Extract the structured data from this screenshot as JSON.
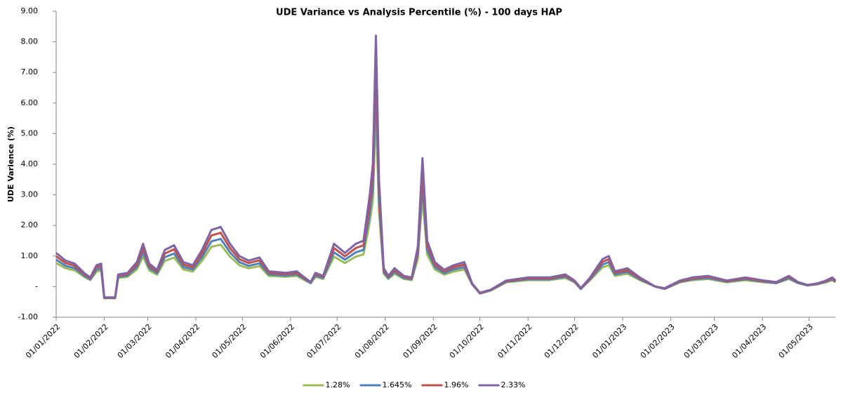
{
  "chart_data": {
    "type": "line",
    "title": "UDE Variance vs Analysis Percentile (%) - 100 days HAP",
    "y_label": "UDE Varience (%)",
    "x": [
      "01/01/2022",
      "07/01/2022",
      "13/01/2022",
      "19/01/2022",
      "23/01/2022",
      "27/01/2022",
      "30/01/2022",
      "01/02/2022",
      "08/02/2022",
      "10/02/2022",
      "16/02/2022",
      "22/02/2022",
      "26/02/2022",
      "02/03/2022",
      "07/03/2022",
      "12/03/2022",
      "18/03/2022",
      "24/03/2022",
      "30/03/2022",
      "05/04/2022",
      "11/04/2022",
      "17/04/2022",
      "23/04/2022",
      "29/04/2022",
      "05/05/2022",
      "12/05/2022",
      "18/05/2022",
      "29/05/2022",
      "05/06/2022",
      "10/06/2022",
      "14/06/2022",
      "17/06/2022",
      "22/06/2022",
      "29/06/2022",
      "06/07/2022",
      "13/07/2022",
      "18/07/2022",
      "22/07/2022",
      "24/07/2022",
      "26/07/2022",
      "28/07/2022",
      "31/07/2022",
      "03/08/2022",
      "07/08/2022",
      "13/08/2022",
      "18/08/2022",
      "22/08/2022",
      "25/08/2022",
      "28/08/2022",
      "02/09/2022",
      "08/09/2022",
      "14/09/2022",
      "21/09/2022",
      "26/09/2022",
      "01/10/2022",
      "08/10/2022",
      "18/10/2022",
      "01/11/2022",
      "15/11/2022",
      "25/11/2022",
      "01/12/2022",
      "05/12/2022",
      "11/12/2022",
      "19/12/2022",
      "23/12/2022",
      "27/12/2022",
      "04/01/2023",
      "12/01/2023",
      "22/01/2023",
      "28/01/2023",
      "07/02/2023",
      "15/02/2023",
      "25/02/2023",
      "09/03/2023",
      "21/03/2023",
      "02/04/2023",
      "10/04/2023",
      "18/04/2023",
      "24/04/2023",
      "30/04/2023",
      "06/05/2023",
      "12/05/2023",
      "16/05/2023",
      "18/05/2023"
    ],
    "series": [
      {
        "name": "1.28%",
        "color": "#9bbb59",
        "values": [
          0.77,
          0.6,
          0.53,
          0.32,
          0.21,
          0.49,
          0.53,
          -0.38,
          -0.38,
          0.28,
          0.32,
          0.56,
          0.98,
          0.53,
          0.39,
          0.84,
          0.95,
          0.56,
          0.49,
          0.84,
          1.3,
          1.37,
          0.98,
          0.7,
          0.6,
          0.67,
          0.35,
          0.32,
          0.35,
          0.21,
          0.11,
          0.32,
          0.25,
          0.98,
          0.77,
          0.98,
          1.05,
          2.1,
          2.8,
          5.74,
          2.45,
          0.42,
          0.25,
          0.42,
          0.25,
          0.21,
          0.91,
          2.94,
          1.05,
          0.56,
          0.39,
          0.49,
          0.56,
          0.07,
          -0.23,
          -0.13,
          0.14,
          0.21,
          0.21,
          0.28,
          0.14,
          -0.08,
          0.21,
          0.63,
          0.7,
          0.35,
          0.42,
          0.21,
          0.0,
          -0.08,
          0.14,
          0.21,
          0.25,
          0.14,
          0.21,
          0.14,
          0.11,
          0.25,
          0.11,
          0.04,
          0.07,
          0.14,
          0.21,
          0.14
        ]
      },
      {
        "name": "1.645%",
        "color": "#4f81bd",
        "values": [
          0.88,
          0.68,
          0.6,
          0.36,
          0.24,
          0.56,
          0.6,
          -0.37,
          -0.37,
          0.32,
          0.36,
          0.64,
          1.12,
          0.6,
          0.44,
          0.96,
          1.08,
          0.64,
          0.56,
          0.96,
          1.48,
          1.56,
          1.12,
          0.8,
          0.68,
          0.76,
          0.4,
          0.36,
          0.4,
          0.24,
          0.12,
          0.36,
          0.28,
          1.12,
          0.88,
          1.12,
          1.2,
          2.4,
          3.2,
          6.56,
          2.8,
          0.48,
          0.28,
          0.48,
          0.28,
          0.24,
          1.04,
          3.36,
          1.2,
          0.64,
          0.44,
          0.56,
          0.64,
          0.08,
          -0.22,
          -0.12,
          0.16,
          0.24,
          0.24,
          0.32,
          0.16,
          -0.07,
          0.24,
          0.72,
          0.8,
          0.4,
          0.48,
          0.24,
          0.0,
          -0.07,
          0.16,
          0.24,
          0.28,
          0.16,
          0.24,
          0.16,
          0.12,
          0.28,
          0.12,
          0.04,
          0.08,
          0.16,
          0.24,
          0.16
        ]
      },
      {
        "name": "1.96%",
        "color": "#c0504d",
        "values": [
          0.99,
          0.77,
          0.68,
          0.41,
          0.27,
          0.63,
          0.68,
          -0.36,
          -0.36,
          0.36,
          0.41,
          0.72,
          1.26,
          0.68,
          0.5,
          1.08,
          1.22,
          0.72,
          0.63,
          1.08,
          1.67,
          1.76,
          1.26,
          0.9,
          0.77,
          0.86,
          0.45,
          0.41,
          0.45,
          0.27,
          0.14,
          0.41,
          0.32,
          1.26,
          0.99,
          1.26,
          1.35,
          2.7,
          3.6,
          7.38,
          3.15,
          0.54,
          0.32,
          0.54,
          0.32,
          0.27,
          1.17,
          3.78,
          1.35,
          0.72,
          0.5,
          0.63,
          0.72,
          0.09,
          -0.21,
          -0.11,
          0.18,
          0.27,
          0.27,
          0.36,
          0.18,
          -0.06,
          0.27,
          0.81,
          0.9,
          0.45,
          0.54,
          0.27,
          0.0,
          -0.06,
          0.18,
          0.27,
          0.32,
          0.18,
          0.27,
          0.18,
          0.14,
          0.32,
          0.14,
          0.05,
          0.09,
          0.18,
          0.27,
          0.18
        ]
      },
      {
        "name": "2.33%",
        "color": "#8064a2",
        "values": [
          1.1,
          0.85,
          0.75,
          0.45,
          0.3,
          0.7,
          0.75,
          -0.35,
          -0.35,
          0.4,
          0.45,
          0.8,
          1.4,
          0.75,
          0.55,
          1.2,
          1.35,
          0.8,
          0.7,
          1.2,
          1.85,
          1.95,
          1.4,
          1.0,
          0.85,
          0.95,
          0.5,
          0.45,
          0.5,
          0.3,
          0.15,
          0.45,
          0.35,
          1.4,
          1.1,
          1.4,
          1.5,
          3.0,
          4.0,
          8.2,
          3.5,
          0.6,
          0.35,
          0.6,
          0.35,
          0.3,
          1.3,
          4.2,
          1.5,
          0.8,
          0.55,
          0.7,
          0.8,
          0.1,
          -0.2,
          -0.1,
          0.2,
          0.3,
          0.3,
          0.4,
          0.2,
          -0.05,
          0.3,
          0.9,
          1.0,
          0.5,
          0.6,
          0.3,
          0.0,
          -0.05,
          0.2,
          0.3,
          0.35,
          0.2,
          0.3,
          0.2,
          0.15,
          0.35,
          0.15,
          0.05,
          0.1,
          0.2,
          0.3,
          0.2
        ]
      }
    ],
    "xlim": [
      "01/01/2022",
      "18/05/2023"
    ],
    "xticks": [
      "01/01/2022",
      "01/02/2022",
      "01/03/2022",
      "01/04/2022",
      "01/05/2022",
      "01/06/2022",
      "01/07/2022",
      "01/08/2022",
      "01/09/2022",
      "01/10/2022",
      "01/11/2022",
      "01/12/2022",
      "01/01/2023",
      "01/02/2023",
      "01/03/2023",
      "01/04/2023",
      "01/05/2023"
    ],
    "ylim": [
      -1,
      9
    ],
    "yticks": [
      {
        "value": -1,
        "label": "-1.00"
      },
      {
        "value": 0,
        "label": "-"
      },
      {
        "value": 1,
        "label": "1.00"
      },
      {
        "value": 2,
        "label": "2.00"
      },
      {
        "value": 3,
        "label": "3.00"
      },
      {
        "value": 4,
        "label": "4.00"
      },
      {
        "value": 5,
        "label": "5.00"
      },
      {
        "value": 6,
        "label": "6.00"
      },
      {
        "value": 7,
        "label": "7.00"
      },
      {
        "value": 8,
        "label": "8.00"
      },
      {
        "value": 9,
        "label": "9.00"
      }
    ],
    "grid": false,
    "legend": "bottom"
  }
}
